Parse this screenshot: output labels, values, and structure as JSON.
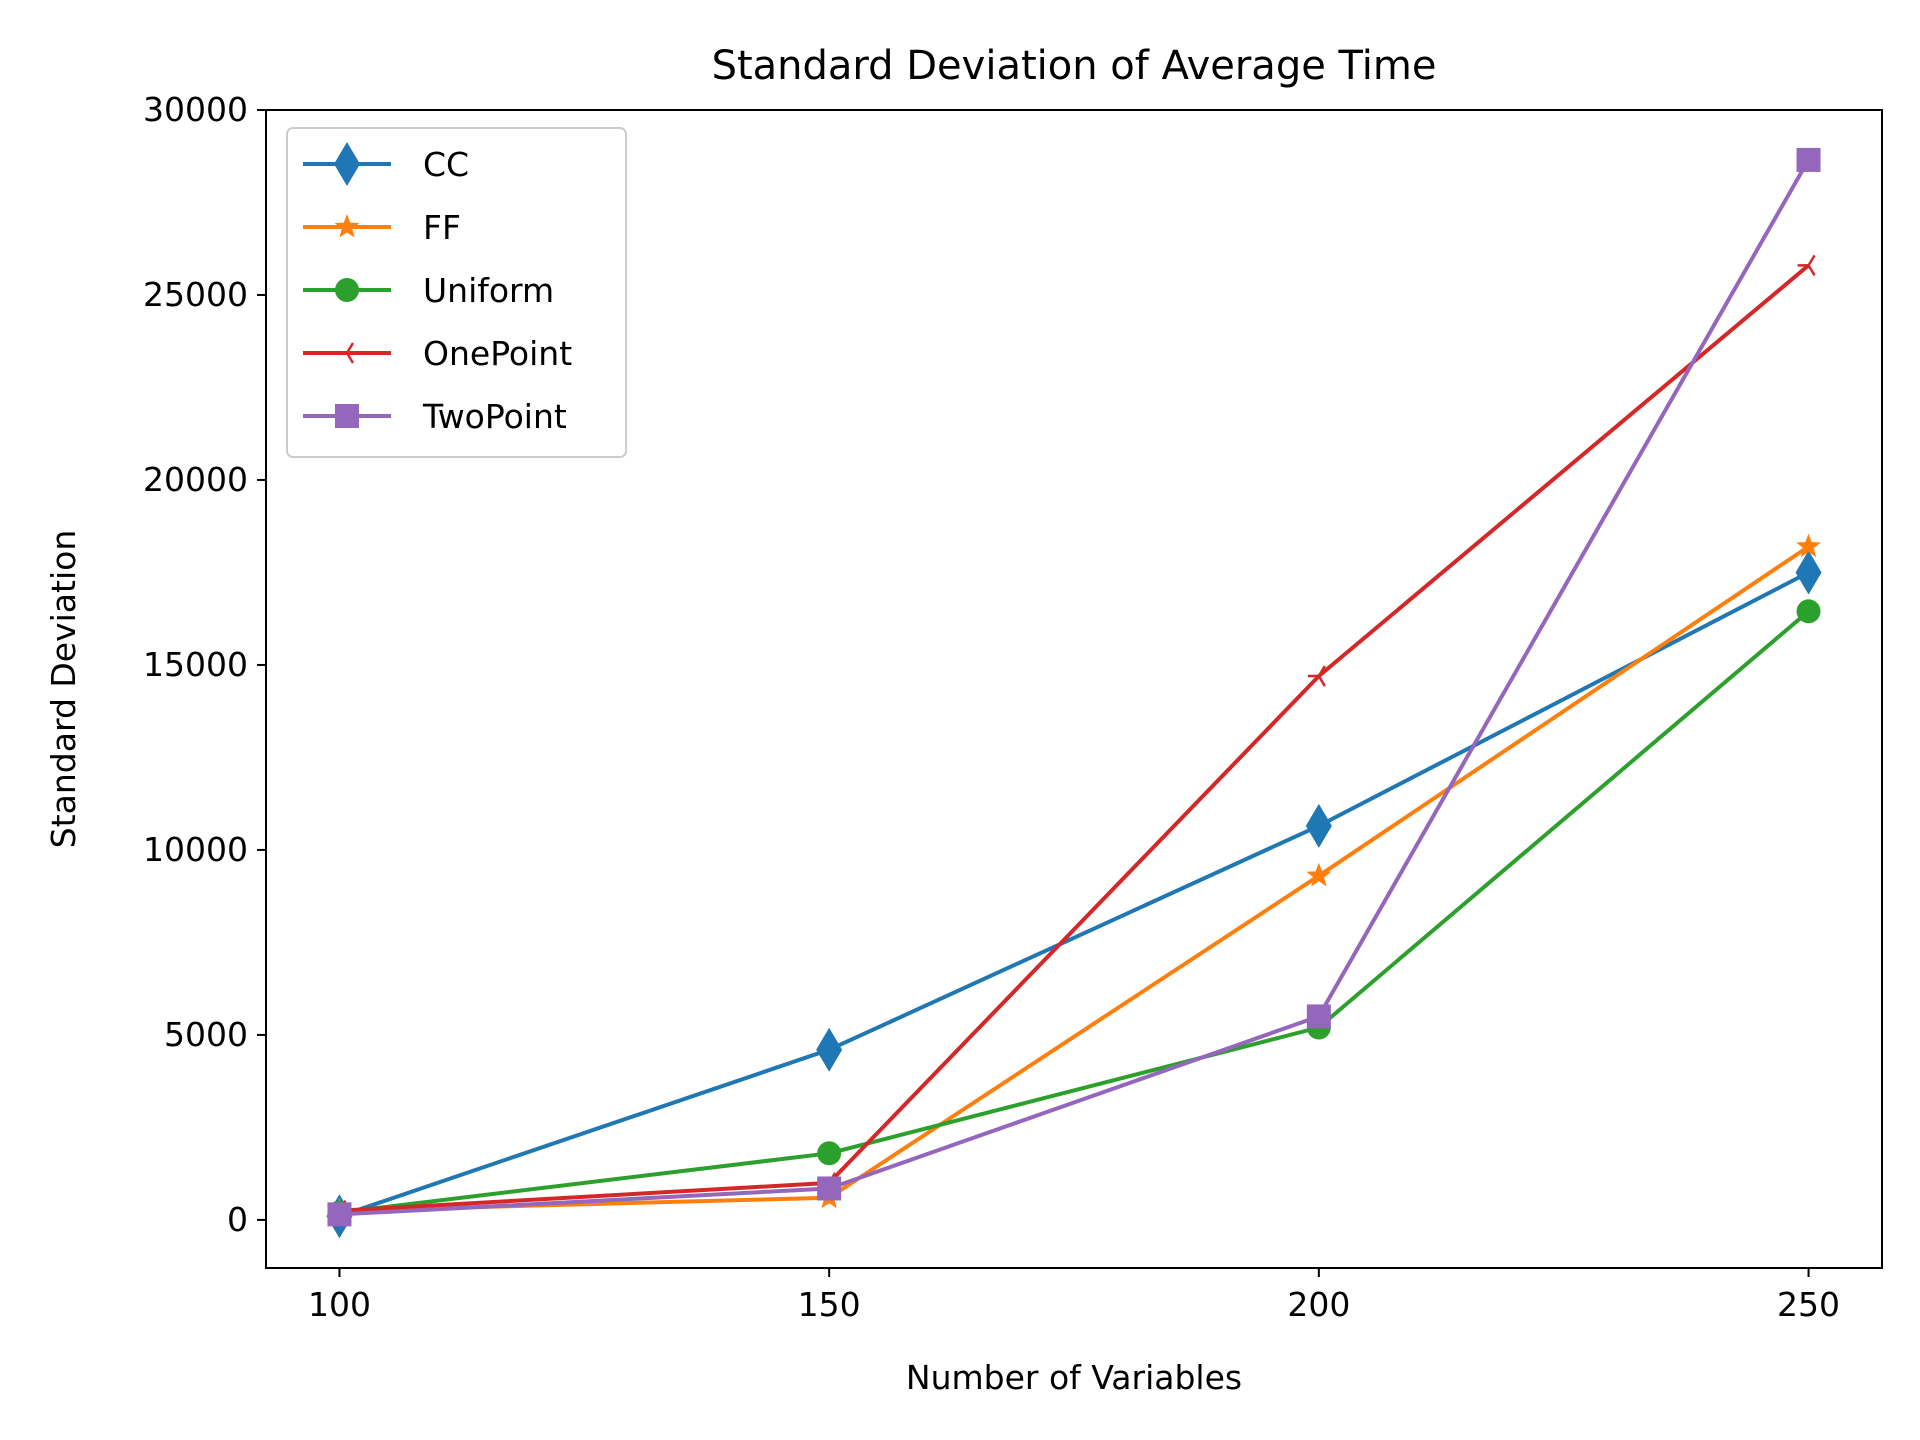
{
  "chart_data": {
    "type": "line",
    "title": "Standard Deviation of Average Time",
    "xlabel": "Number of Variables",
    "ylabel": "Standard Deviation",
    "x": [
      100,
      150,
      200,
      250
    ],
    "x_ticks": [
      "100",
      "150",
      "200",
      "250"
    ],
    "xlim": [
      92.5,
      257.5
    ],
    "y_ticks": [
      "0",
      "5000",
      "10000",
      "15000",
      "20000",
      "25000",
      "30000"
    ],
    "ylim": [
      -1300,
      30000
    ],
    "grid": false,
    "legend_position": "top-left",
    "series": [
      {
        "name": "CC",
        "values": [
          100,
          4600,
          10650,
          17500
        ],
        "color": "#1f77b4",
        "marker": "diamond"
      },
      {
        "name": "FF",
        "values": [
          250,
          600,
          9300,
          18200
        ],
        "color": "#ff7f0e",
        "marker": "star"
      },
      {
        "name": "Uniform",
        "values": [
          200,
          1800,
          5200,
          16450
        ],
        "color": "#2ca02c",
        "marker": "circle"
      },
      {
        "name": "OnePoint",
        "values": [
          250,
          1000,
          14700,
          25800
        ],
        "color": "#d62728",
        "marker": "tri_left"
      },
      {
        "name": "TwoPoint",
        "values": [
          150,
          850,
          5500,
          28650
        ],
        "color": "#9467bd",
        "marker": "square"
      }
    ]
  }
}
